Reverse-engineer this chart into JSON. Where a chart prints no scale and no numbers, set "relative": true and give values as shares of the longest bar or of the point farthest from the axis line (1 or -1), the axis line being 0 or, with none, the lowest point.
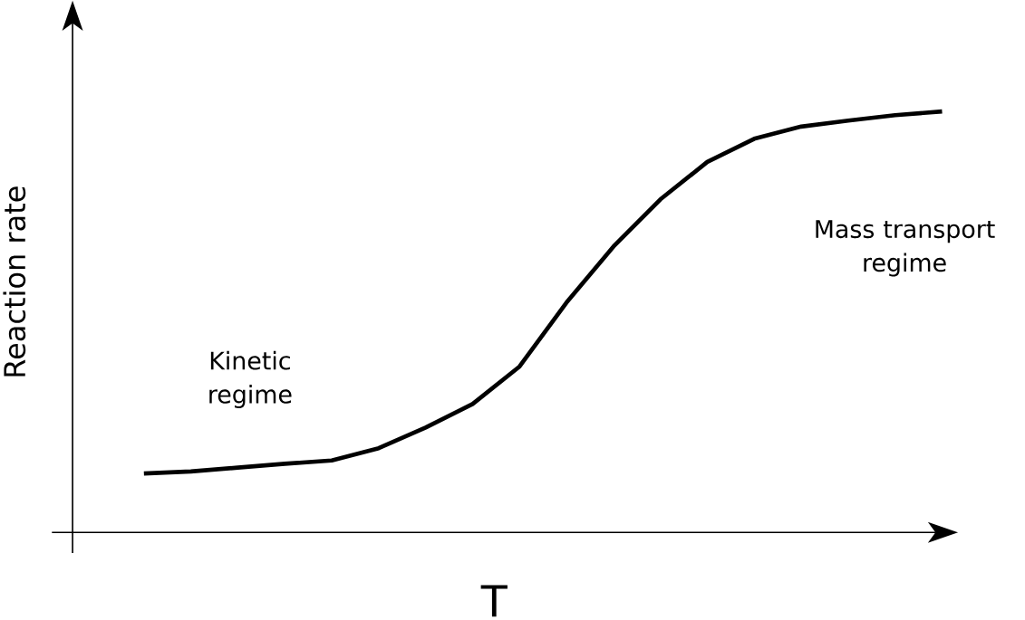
{
  "chart_data": {
    "type": "line",
    "relative": true,
    "xlabel": "T",
    "ylabel": "Reaction rate",
    "color": "#000000",
    "categories": [
      null,
      null,
      null,
      null,
      null,
      null,
      null,
      null,
      null,
      null,
      null,
      null,
      null,
      null,
      null,
      null,
      null,
      null
    ],
    "values": [
      0.14,
      0.145,
      0.154,
      0.163,
      0.171,
      0.2,
      0.249,
      0.305,
      0.394,
      0.546,
      0.679,
      0.791,
      0.88,
      0.935,
      0.964,
      0.978,
      0.991,
      1.0
    ],
    "annotations": [
      "Kinetic regime",
      "Mass transport regime"
    ]
  }
}
